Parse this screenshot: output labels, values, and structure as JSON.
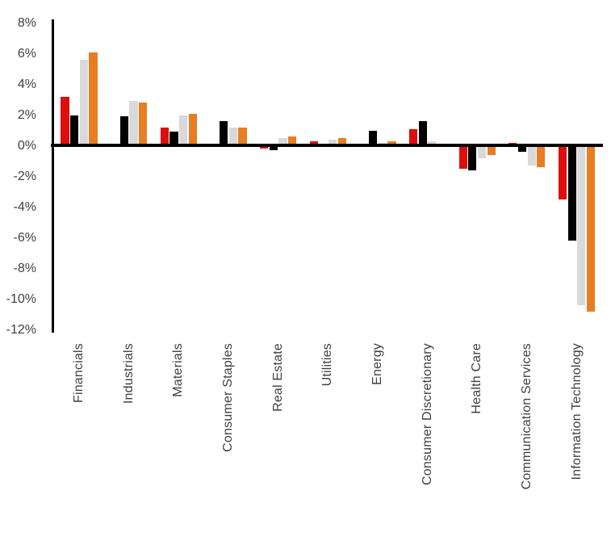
{
  "chart_data": {
    "type": "bar",
    "title": "",
    "xlabel": "",
    "ylabel": "",
    "ylim": [
      -12,
      8
    ],
    "ytick_step": 2,
    "ytick_labels": [
      "8%",
      "6%",
      "4%",
      "2%",
      "0%",
      "-2%",
      "-4%",
      "-6%",
      "-8%",
      "-10%",
      "-12%"
    ],
    "grid": false,
    "legend_position": "none",
    "categories": [
      "Financials",
      "Industrials",
      "Materials",
      "Consumer Staples",
      "Real Estate",
      "Utilities",
      "Energy",
      "Consumer Discretionary",
      "Health Care",
      "Communication Services",
      "Information Technology"
    ],
    "series": [
      {
        "name": "red",
        "color": "#e00d0d",
        "values": [
          3.2,
          0.0,
          1.2,
          0.0,
          -0.2,
          0.3,
          -0.1,
          1.1,
          -1.5,
          0.2,
          -3.5
        ]
      },
      {
        "name": "black",
        "color": "#000000",
        "values": [
          2.0,
          1.9,
          0.9,
          1.6,
          -0.3,
          0.0,
          1.0,
          1.6,
          -1.6,
          -0.4,
          -6.2
        ]
      },
      {
        "name": "gray",
        "color": "#d9d9d9",
        "values": [
          5.6,
          2.9,
          2.0,
          1.2,
          0.5,
          0.4,
          0.2,
          0.3,
          -0.8,
          -1.3,
          -10.4
        ]
      },
      {
        "name": "orange",
        "color": "#e87d22",
        "values": [
          6.1,
          2.8,
          2.1,
          1.2,
          0.6,
          0.5,
          0.3,
          -0.1,
          -0.6,
          -1.4,
          -10.8
        ]
      }
    ]
  },
  "colors": {
    "axis": "#000000",
    "tick_text": "#3f3f3f",
    "background": "#ffffff"
  }
}
